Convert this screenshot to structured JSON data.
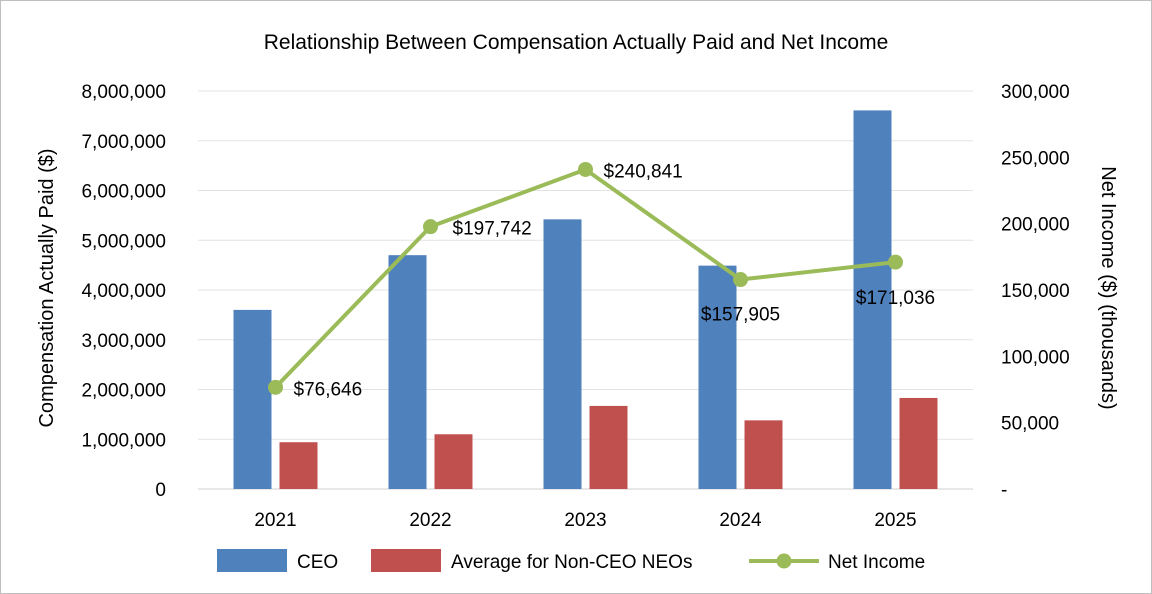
{
  "chart_data": {
    "type": "bar",
    "title": "Relationship Between Compensation Actually Paid and Net Income",
    "categories": [
      "2021",
      "2022",
      "2023",
      "2024",
      "2025"
    ],
    "series": [
      {
        "name": "CEO",
        "kind": "bar",
        "axis": "left",
        "color": "#4f81bd",
        "values": [
          3600000,
          4700000,
          5420000,
          4490000,
          7610000
        ]
      },
      {
        "name": "Average for Non-CEO NEOs",
        "kind": "bar",
        "axis": "left",
        "color": "#c0504d",
        "values": [
          940000,
          1100000,
          1670000,
          1380000,
          1830000
        ]
      },
      {
        "name": "Net Income",
        "kind": "line",
        "axis": "right",
        "color": "#9bbb59",
        "values": [
          76646,
          197742,
          240841,
          157905,
          171036
        ],
        "labels": [
          "$76,646",
          "$197,742",
          "$240,841",
          "$157,905",
          "$171,036"
        ]
      }
    ],
    "left_axis": {
      "label": "Compensation Actually Paid ($)",
      "min": 0,
      "max": 8000000,
      "ticks": [
        "0",
        "1,000,000",
        "2,000,000",
        "3,000,000",
        "4,000,000",
        "5,000,000",
        "6,000,000",
        "7,000,000",
        "8,000,000"
      ]
    },
    "right_axis": {
      "label": "Net Income ($) (thousands)",
      "min": 0,
      "max": 300000,
      "ticks": [
        "-",
        "50,000",
        "100,000",
        "150,000",
        "200,000",
        "250,000",
        "300,000"
      ]
    },
    "gridlines": true,
    "legend_position": "bottom"
  }
}
